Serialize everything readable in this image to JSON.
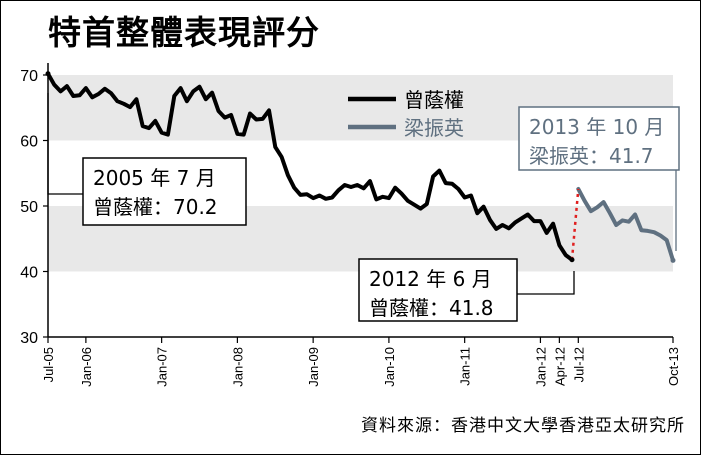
{
  "title": "特首整體表現評分",
  "source": "資料來源：香港中文大學香港亞太研究所",
  "chart_data": {
    "type": "line",
    "ylim": [
      30,
      70
    ],
    "yticks": [
      30,
      40,
      50,
      60,
      70
    ],
    "grid": false,
    "bands": [
      [
        40,
        50
      ],
      [
        60,
        70
      ]
    ],
    "xticks": [
      {
        "label": "Jul-05",
        "date": "2005-07"
      },
      {
        "label": "Jan-06",
        "date": "2006-01"
      },
      {
        "label": "Jan-07",
        "date": "2007-01"
      },
      {
        "label": "Jan-08",
        "date": "2008-01"
      },
      {
        "label": "Jan-09",
        "date": "2009-01"
      },
      {
        "label": "Jan-10",
        "date": "2010-01"
      },
      {
        "label": "Jan-11",
        "date": "2011-01"
      },
      {
        "label": "Jan-12",
        "date": "2012-01"
      },
      {
        "label": "Apr-12",
        "date": "2012-04"
      },
      {
        "label": "Jul-12",
        "date": "2012-07"
      },
      {
        "label": "Oct-13",
        "date": "2013-10"
      }
    ],
    "legend_position": "top-center",
    "series": [
      {
        "name": "曾蔭權",
        "color": "#000000",
        "points": [
          [
            "2005-07",
            70.2
          ],
          [
            "2005-08",
            68.5
          ],
          [
            "2005-09",
            67.5
          ],
          [
            "2005-10",
            68.3
          ],
          [
            "2005-11",
            66.8
          ],
          [
            "2005-12",
            66.9
          ],
          [
            "2006-01",
            68.0
          ],
          [
            "2006-02",
            66.6
          ],
          [
            "2006-03",
            67.1
          ],
          [
            "2006-04",
            67.9
          ],
          [
            "2006-05",
            67.2
          ],
          [
            "2006-06",
            66.0
          ],
          [
            "2006-07",
            65.6
          ],
          [
            "2006-08",
            65.1
          ],
          [
            "2006-09",
            66.3
          ],
          [
            "2006-10",
            62.2
          ],
          [
            "2006-11",
            61.9
          ],
          [
            "2006-12",
            63.0
          ],
          [
            "2007-01",
            61.2
          ],
          [
            "2007-02",
            60.9
          ],
          [
            "2007-03",
            66.8
          ],
          [
            "2007-04",
            68.0
          ],
          [
            "2007-05",
            66.0
          ],
          [
            "2007-06",
            67.5
          ],
          [
            "2007-07",
            68.2
          ],
          [
            "2007-08",
            66.3
          ],
          [
            "2007-09",
            67.3
          ],
          [
            "2007-10",
            64.5
          ],
          [
            "2007-11",
            63.5
          ],
          [
            "2007-12",
            63.9
          ],
          [
            "2008-01",
            61.0
          ],
          [
            "2008-02",
            60.9
          ],
          [
            "2008-03",
            64.1
          ],
          [
            "2008-04",
            63.2
          ],
          [
            "2008-05",
            63.3
          ],
          [
            "2008-06",
            64.6
          ],
          [
            "2008-07",
            59.0
          ],
          [
            "2008-08",
            57.5
          ],
          [
            "2008-09",
            54.7
          ],
          [
            "2008-10",
            52.8
          ],
          [
            "2008-11",
            51.7
          ],
          [
            "2008-12",
            51.8
          ],
          [
            "2009-01",
            51.2
          ],
          [
            "2009-02",
            51.6
          ],
          [
            "2009-03",
            51.1
          ],
          [
            "2009-04",
            51.3
          ],
          [
            "2009-05",
            52.4
          ],
          [
            "2009-06",
            53.2
          ],
          [
            "2009-07",
            52.9
          ],
          [
            "2009-08",
            53.2
          ],
          [
            "2009-09",
            52.7
          ],
          [
            "2009-10",
            53.8
          ],
          [
            "2009-11",
            51.0
          ],
          [
            "2009-12",
            51.4
          ],
          [
            "2010-01",
            51.2
          ],
          [
            "2010-02",
            52.8
          ],
          [
            "2010-03",
            51.9
          ],
          [
            "2010-04",
            50.8
          ],
          [
            "2010-05",
            50.2
          ],
          [
            "2010-06",
            49.6
          ],
          [
            "2010-07",
            50.3
          ],
          [
            "2010-08",
            54.5
          ],
          [
            "2010-09",
            55.4
          ],
          [
            "2010-10",
            53.5
          ],
          [
            "2010-11",
            53.4
          ],
          [
            "2010-12",
            52.6
          ],
          [
            "2011-01",
            51.3
          ],
          [
            "2011-02",
            51.6
          ],
          [
            "2011-03",
            48.9
          ],
          [
            "2011-04",
            49.9
          ],
          [
            "2011-05",
            47.9
          ],
          [
            "2011-06",
            46.5
          ],
          [
            "2011-07",
            47.1
          ],
          [
            "2011-08",
            46.6
          ],
          [
            "2011-09",
            47.5
          ],
          [
            "2011-10",
            48.1
          ],
          [
            "2011-11",
            48.7
          ],
          [
            "2011-12",
            47.7
          ],
          [
            "2012-01",
            47.7
          ],
          [
            "2012-02",
            45.9
          ],
          [
            "2012-03",
            47.3
          ],
          [
            "2012-04",
            44.0
          ],
          [
            "2012-05",
            42.5
          ],
          [
            "2012-06",
            41.8
          ]
        ]
      },
      {
        "name": "梁振英",
        "color": "#5f7080",
        "points": [
          [
            "2012-07",
            52.6
          ],
          [
            "2012-08",
            50.8
          ],
          [
            "2012-09",
            49.2
          ],
          [
            "2012-10",
            49.8
          ],
          [
            "2012-11",
            50.6
          ],
          [
            "2012-12",
            48.9
          ],
          [
            "2013-01",
            47.1
          ],
          [
            "2013-02",
            47.8
          ],
          [
            "2013-03",
            47.6
          ],
          [
            "2013-04",
            48.7
          ],
          [
            "2013-05",
            46.3
          ],
          [
            "2013-06",
            46.2
          ],
          [
            "2013-07",
            46.0
          ],
          [
            "2013-08",
            45.5
          ],
          [
            "2013-09",
            44.8
          ],
          [
            "2013-10",
            41.7
          ]
        ]
      }
    ],
    "transition": {
      "from": [
        "2012-06",
        41.8
      ],
      "to": [
        "2012-07",
        52.6
      ],
      "style": "red-dotted"
    },
    "annotations": [
      {
        "line1": "2005 年 7 月",
        "line2": "曾蔭權：70.2",
        "point": [
          "2005-07",
          70.2
        ]
      },
      {
        "line1": "2012 年 6 月",
        "line2": "曾蔭權：41.8",
        "point": [
          "2012-06",
          41.8
        ]
      },
      {
        "line1": "2013 年 10 月",
        "line2": "梁振英：41.7",
        "point": [
          "2013-10",
          41.7
        ]
      }
    ]
  },
  "colors": {
    "band": "#e8e8e8",
    "series_old": "#000000",
    "series_new": "#5f7080",
    "transition": "#e02020"
  }
}
